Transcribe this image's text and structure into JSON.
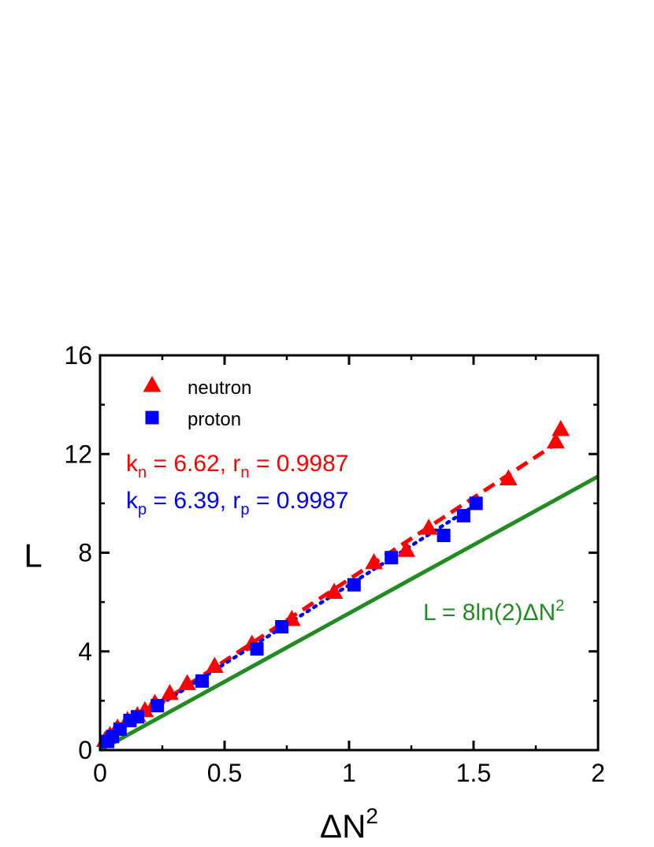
{
  "chart_data": {
    "type": "scatter",
    "xlabel": "ΔN",
    "xlabel_sup": "2",
    "ylabel": "L",
    "xlim": [
      0,
      2
    ],
    "ylim": [
      0,
      16
    ],
    "x_ticks": [
      "0",
      "0.5",
      "1",
      "1.5",
      "2"
    ],
    "y_ticks": [
      "0",
      "4",
      "8",
      "12",
      "16"
    ],
    "legend_position": "top-left",
    "series": [
      {
        "name": "neutron",
        "marker": "triangle",
        "color": "#ff0000",
        "fit_style": "dashed",
        "fit_slope": 6.62,
        "fit_intercept": 0.3,
        "points": [
          [
            0.02,
            0.4
          ],
          [
            0.04,
            0.6
          ],
          [
            0.07,
            0.9
          ],
          [
            0.11,
            1.2
          ],
          [
            0.15,
            1.4
          ],
          [
            0.18,
            1.6
          ],
          [
            0.22,
            1.9
          ],
          [
            0.28,
            2.3
          ],
          [
            0.35,
            2.7
          ],
          [
            0.46,
            3.4
          ],
          [
            0.61,
            4.3
          ],
          [
            0.77,
            5.3
          ],
          [
            0.94,
            6.4
          ],
          [
            1.1,
            7.6
          ],
          [
            1.23,
            8.1
          ],
          [
            1.32,
            9.0
          ],
          [
            1.64,
            11.0
          ],
          [
            1.83,
            12.5
          ],
          [
            1.85,
            13.0
          ]
        ]
      },
      {
        "name": "proton",
        "marker": "square",
        "color": "#0000ff",
        "fit_style": "dotted",
        "fit_slope": 6.39,
        "fit_intercept": 0.3,
        "points": [
          [
            0.03,
            0.35
          ],
          [
            0.05,
            0.55
          ],
          [
            0.08,
            0.85
          ],
          [
            0.12,
            1.2
          ],
          [
            0.15,
            1.35
          ],
          [
            0.23,
            1.8
          ],
          [
            0.41,
            2.8
          ],
          [
            0.63,
            4.1
          ],
          [
            0.73,
            5.0
          ],
          [
            1.02,
            6.7
          ],
          [
            1.17,
            7.8
          ],
          [
            1.38,
            8.7
          ],
          [
            1.46,
            9.5
          ],
          [
            1.51,
            10.0
          ]
        ]
      }
    ],
    "reference_line": {
      "color": "#228b22",
      "slope": 5.545,
      "intercept": 0.0,
      "label": "L = 8ln(2)ΔN",
      "label_sup": "2"
    },
    "annotations": [
      {
        "color": "#ff0000",
        "k_sub": "n",
        "k_value": " = 6.62, r",
        "r_sub": "n",
        "r_value": " = 0.9987"
      },
      {
        "color": "#0000ff",
        "k_sub": "p",
        "k_value": " = 6.39, r",
        "r_sub": "p",
        "r_value": " = 0.9987"
      }
    ]
  }
}
